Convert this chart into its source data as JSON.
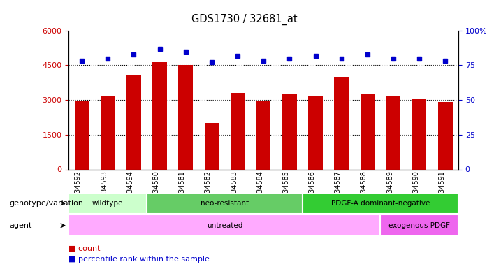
{
  "title": "GDS1730 / 32681_at",
  "samples": [
    "GSM34592",
    "GSM34593",
    "GSM34594",
    "GSM34580",
    "GSM34581",
    "GSM34582",
    "GSM34583",
    "GSM34584",
    "GSM34585",
    "GSM34586",
    "GSM34587",
    "GSM34588",
    "GSM34589",
    "GSM34590",
    "GSM34591"
  ],
  "counts": [
    2950,
    3200,
    4050,
    4620,
    4500,
    2000,
    3300,
    2950,
    3250,
    3180,
    4000,
    3280,
    3180,
    3050,
    2900
  ],
  "percentile": [
    78,
    80,
    83,
    87,
    85,
    77,
    82,
    78,
    80,
    82,
    80,
    83,
    80,
    80,
    78
  ],
  "ylim_left": [
    0,
    6000
  ],
  "ylim_right": [
    0,
    100
  ],
  "yticks_left": [
    0,
    1500,
    3000,
    4500,
    6000
  ],
  "ytick_labels_left": [
    "0",
    "1500",
    "3000",
    "4500",
    "6000"
  ],
  "yticks_right": [
    0,
    25,
    50,
    75,
    100
  ],
  "ytick_labels_right": [
    "0",
    "25",
    "50",
    "75",
    "100%"
  ],
  "bar_color": "#cc0000",
  "dot_color": "#0000cc",
  "background_color": "#ffffff",
  "plot_bg_color": "#ffffff",
  "genotype_groups": [
    {
      "label": "wildtype",
      "start": 0,
      "end": 3,
      "color": "#ccffcc"
    },
    {
      "label": "neo-resistant",
      "start": 3,
      "end": 9,
      "color": "#66cc66"
    },
    {
      "label": "PDGF-A dominant-negative",
      "start": 9,
      "end": 15,
      "color": "#33cc33"
    }
  ],
  "agent_groups": [
    {
      "label": "untreated",
      "start": 0,
      "end": 12,
      "color": "#ffaaff"
    },
    {
      "label": "exogenous PDGF",
      "start": 12,
      "end": 15,
      "color": "#ee66ee"
    }
  ],
  "legend_count_label": "count",
  "legend_pct_label": "percentile rank within the sample",
  "genotype_label": "genotype/variation",
  "agent_label": "agent"
}
